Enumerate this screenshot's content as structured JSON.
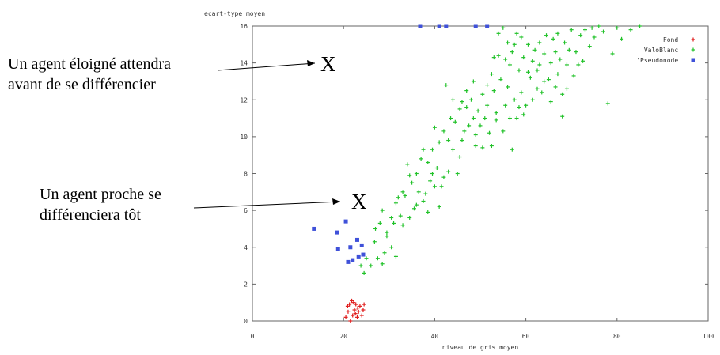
{
  "chart_data": {
    "type": "scatter",
    "title": "",
    "xlabel": "niveau de gris moyen",
    "ylabel": "ecart-type moyen",
    "xlim": [
      0,
      100
    ],
    "ylim": [
      0,
      16
    ],
    "x_ticks": [
      "0",
      "20",
      "40",
      "60",
      "80",
      "100"
    ],
    "y_ticks": [
      "0",
      "2",
      "4",
      "6",
      "8",
      "10",
      "12",
      "14",
      "16"
    ],
    "grid": false,
    "legend_position": "top-right",
    "series": [
      {
        "name": "'Fond'",
        "marker": "plus",
        "color": "#e01b1b",
        "points": [
          [
            20.5,
            0.2
          ],
          [
            21.0,
            0.5
          ],
          [
            21.3,
            0.9
          ],
          [
            21.8,
            1.1
          ],
          [
            22.0,
            0.3
          ],
          [
            22.4,
            0.6
          ],
          [
            22.7,
            0.9
          ],
          [
            23.0,
            0.2
          ],
          [
            23.3,
            0.5
          ],
          [
            23.6,
            0.8
          ],
          [
            24.0,
            0.3
          ],
          [
            24.3,
            0.6
          ],
          [
            21.5,
            0.0
          ],
          [
            22.2,
            1.0
          ],
          [
            23.1,
            0.7
          ],
          [
            20.9,
            0.8
          ],
          [
            24.5,
            0.9
          ],
          [
            22.6,
            0.4
          ]
        ]
      },
      {
        "name": "'ValoBlanc'",
        "marker": "plus",
        "color": "#22c22a",
        "points": [
          [
            23.8,
            3.0
          ],
          [
            24.5,
            2.6
          ],
          [
            25.0,
            3.4
          ],
          [
            26.0,
            3.0
          ],
          [
            26.8,
            4.3
          ],
          [
            27.5,
            3.4
          ],
          [
            28.0,
            5.3
          ],
          [
            28.5,
            3.1
          ],
          [
            29.0,
            3.7
          ],
          [
            29.5,
            4.8
          ],
          [
            30.5,
            5.6
          ],
          [
            31.0,
            5.3
          ],
          [
            31.5,
            6.4
          ],
          [
            32.0,
            6.7
          ],
          [
            32.5,
            5.7
          ],
          [
            33.0,
            7.0
          ],
          [
            33.5,
            6.8
          ],
          [
            34.0,
            8.5
          ],
          [
            34.5,
            5.6
          ],
          [
            35.0,
            7.5
          ],
          [
            36.0,
            8.0
          ],
          [
            36.5,
            7.0
          ],
          [
            37.0,
            8.8
          ],
          [
            37.5,
            9.3
          ],
          [
            38.0,
            6.9
          ],
          [
            38.5,
            8.6
          ],
          [
            39.0,
            7.6
          ],
          [
            39.5,
            9.3
          ],
          [
            40.0,
            10.5
          ],
          [
            40.5,
            8.3
          ],
          [
            41.0,
            9.7
          ],
          [
            41.5,
            7.3
          ],
          [
            42.0,
            10.3
          ],
          [
            42.5,
            12.8
          ],
          [
            43.0,
            8.1
          ],
          [
            43.5,
            11.0
          ],
          [
            44.0,
            9.3
          ],
          [
            44.5,
            10.8
          ],
          [
            45.0,
            8.0
          ],
          [
            45.5,
            11.5
          ],
          [
            46.0,
            9.8
          ],
          [
            46.5,
            10.3
          ],
          [
            47.0,
            11.6
          ],
          [
            47.5,
            10.6
          ],
          [
            48.0,
            12.0
          ],
          [
            48.5,
            11.0
          ],
          [
            49.0,
            10.1
          ],
          [
            49.5,
            11.4
          ],
          [
            50.0,
            10.6
          ],
          [
            50.5,
            12.3
          ],
          [
            51.0,
            11.0
          ],
          [
            51.5,
            11.7
          ],
          [
            52.0,
            10.2
          ],
          [
            52.5,
            9.5
          ],
          [
            53.0,
            12.5
          ],
          [
            53.5,
            11.3
          ],
          [
            54.0,
            15.6
          ],
          [
            54.5,
            13.1
          ],
          [
            55.0,
            10.3
          ],
          [
            55.5,
            11.7
          ],
          [
            56.0,
            12.7
          ],
          [
            56.5,
            11.0
          ],
          [
            57.0,
            9.3
          ],
          [
            57.5,
            12.0
          ],
          [
            58.0,
            11.0
          ],
          [
            58.5,
            13.6
          ],
          [
            59.0,
            12.4
          ],
          [
            59.5,
            14.3
          ],
          [
            60.0,
            11.7
          ],
          [
            60.5,
            15.0
          ],
          [
            61.0,
            13.2
          ],
          [
            61.5,
            12.0
          ],
          [
            62.0,
            14.7
          ],
          [
            62.5,
            13.6
          ],
          [
            63.0,
            15.1
          ],
          [
            63.5,
            12.4
          ],
          [
            64.0,
            14.5
          ],
          [
            64.5,
            15.5
          ],
          [
            65.0,
            13.1
          ],
          [
            65.5,
            14.0
          ],
          [
            66.0,
            15.3
          ],
          [
            66.5,
            12.7
          ],
          [
            67.0,
            13.4
          ],
          [
            67.5,
            14.2
          ],
          [
            68.0,
            12.3
          ],
          [
            68.5,
            15.1
          ],
          [
            69.0,
            13.9
          ],
          [
            69.5,
            14.7
          ],
          [
            70.0,
            15.8
          ],
          [
            70.5,
            13.3
          ],
          [
            71.0,
            14.6
          ],
          [
            72.0,
            15.5
          ],
          [
            72.5,
            14.1
          ],
          [
            73.0,
            15.8
          ],
          [
            74.0,
            14.9
          ],
          [
            75.0,
            15.4
          ],
          [
            76.0,
            16.0
          ],
          [
            77.0,
            15.7
          ],
          [
            78.0,
            11.8
          ],
          [
            79.0,
            14.5
          ],
          [
            80.0,
            15.9
          ],
          [
            81.0,
            15.3
          ],
          [
            83.0,
            15.8
          ],
          [
            85.0,
            16.0
          ],
          [
            54.0,
            14.4
          ],
          [
            56.0,
            15.1
          ],
          [
            58.0,
            15.6
          ],
          [
            63.0,
            13.9
          ],
          [
            35.5,
            6.1
          ],
          [
            37.5,
            6.5
          ],
          [
            39.5,
            8.0
          ],
          [
            44.0,
            12.0
          ],
          [
            46.0,
            11.9
          ],
          [
            48.5,
            13.0
          ],
          [
            50.5,
            9.4
          ],
          [
            52.5,
            13.4
          ],
          [
            34.5,
            7.9
          ],
          [
            41.0,
            6.2
          ],
          [
            29.5,
            4.6
          ],
          [
            27.0,
            5.0
          ],
          [
            30.5,
            4.0
          ],
          [
            45.5,
            8.9
          ],
          [
            43.0,
            9.8
          ],
          [
            40.0,
            7.3
          ],
          [
            53.5,
            10.9
          ],
          [
            55.5,
            14.2
          ],
          [
            57.5,
            15.0
          ],
          [
            59.5,
            11.2
          ],
          [
            61.5,
            14.1
          ],
          [
            65.5,
            11.9
          ],
          [
            67.0,
            15.6
          ],
          [
            69.0,
            12.6
          ],
          [
            71.5,
            13.9
          ],
          [
            74.5,
            15.9
          ],
          [
            62.5,
            12.6
          ],
          [
            64.0,
            13.0
          ],
          [
            66.5,
            14.6
          ],
          [
            68.0,
            11.1
          ],
          [
            60.5,
            13.5
          ],
          [
            58.5,
            11.6
          ],
          [
            56.5,
            13.9
          ],
          [
            49.0,
            9.5
          ],
          [
            47.0,
            12.5
          ],
          [
            51.5,
            12.8
          ],
          [
            38.5,
            5.9
          ],
          [
            36.0,
            6.3
          ],
          [
            33.0,
            5.2
          ],
          [
            31.5,
            3.5
          ],
          [
            28.5,
            6.0
          ],
          [
            42.0,
            7.8
          ],
          [
            53.0,
            14.3
          ],
          [
            55.0,
            15.9
          ],
          [
            57.0,
            14.6
          ],
          [
            59.0,
            15.4
          ]
        ]
      },
      {
        "name": "'Pseudonode'",
        "marker": "square",
        "color": "#3f51d9",
        "points": [
          [
            13.5,
            5.0
          ],
          [
            18.5,
            4.8
          ],
          [
            18.8,
            3.9
          ],
          [
            20.5,
            5.4
          ],
          [
            21.0,
            3.2
          ],
          [
            21.5,
            4.0
          ],
          [
            22.0,
            3.3
          ],
          [
            23.0,
            4.4
          ],
          [
            23.3,
            3.5
          ],
          [
            24.0,
            4.1
          ],
          [
            24.3,
            3.6
          ],
          [
            36.8,
            16.0
          ],
          [
            41.0,
            16.0
          ],
          [
            42.5,
            16.0
          ],
          [
            49.0,
            16.0
          ],
          [
            51.5,
            16.0
          ]
        ]
      }
    ]
  },
  "annotations": {
    "far_line1": "Un agent éloigné attendra",
    "far_line2": "avant de se différencier",
    "near_line1": "Un agent proche se",
    "near_line2": "différenciera tôt",
    "far_mark": "X",
    "near_mark": "X"
  }
}
